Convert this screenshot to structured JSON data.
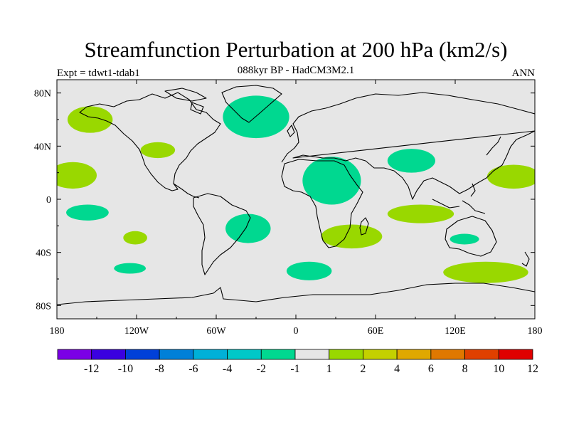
{
  "title": "Streamfunction Perturbation at 200 hPa (km2/s)",
  "left_label": "Expt = tdwt1-tdab1",
  "center_label": "088kyr BP - HadCM3M2.1",
  "right_label": "ANN",
  "colors": {
    "land_bg": "#e6e6e6",
    "pos1": "#99d800",
    "neg1": "#00d890",
    "coast": "#000000"
  },
  "chart_data": {
    "type": "heatmap",
    "projection": "cylindrical-equidistant",
    "lon_range": [
      -180,
      180
    ],
    "lat_range": [
      -90,
      90
    ],
    "x_ticks": [
      {
        "value": -180,
        "label": "180"
      },
      {
        "value": -120,
        "label": "120W"
      },
      {
        "value": -60,
        "label": "60W"
      },
      {
        "value": 0,
        "label": "0"
      },
      {
        "value": 60,
        "label": "60E"
      },
      {
        "value": 120,
        "label": "120E"
      },
      {
        "value": 180,
        "label": "180"
      }
    ],
    "y_ticks": [
      {
        "value": 80,
        "label": "80N"
      },
      {
        "value": 40,
        "label": "40N"
      },
      {
        "value": 0,
        "label": "0"
      },
      {
        "value": -40,
        "label": "40S"
      },
      {
        "value": -80,
        "label": "80S"
      }
    ],
    "colorbar": {
      "colors": [
        "#7b00e6",
        "#3a00e0",
        "#0040d8",
        "#0080d8",
        "#00b0d8",
        "#00c8c8",
        "#00d890",
        "#e6e6e6",
        "#99d800",
        "#c4d000",
        "#e0a800",
        "#e07800",
        "#e04000",
        "#e00000"
      ],
      "labels": [
        "-12",
        "-10",
        "-8",
        "-6",
        "-4",
        "-2",
        "-1",
        "1",
        "2",
        "4",
        "6",
        "8",
        "10",
        "12"
      ]
    },
    "anomaly_regions": [
      {
        "name": "north-pacific-pos",
        "sign": "positive",
        "lon": -155,
        "lat": 60,
        "rlon": 17,
        "rlat": 10
      },
      {
        "name": "north-america-pos",
        "sign": "positive",
        "lon": -104,
        "lat": 37,
        "rlon": 13,
        "rlat": 6
      },
      {
        "name": "east-pacific-pos",
        "sign": "positive",
        "lon": -168,
        "lat": 18,
        "rlon": 18,
        "rlat": 10
      },
      {
        "name": "subtropical-south-pacific-neg",
        "sign": "negative",
        "lon": -157,
        "lat": -10,
        "rlon": 16,
        "rlat": 6
      },
      {
        "name": "south-pacific-pos",
        "sign": "positive",
        "lon": -121,
        "lat": -29,
        "rlon": 9,
        "rlat": 5
      },
      {
        "name": "southern-ocean-neg",
        "sign": "negative",
        "lon": -125,
        "lat": -52,
        "rlon": 12,
        "rlat": 4
      },
      {
        "name": "north-atlantic-neg",
        "sign": "negative",
        "lon": -30,
        "lat": 62,
        "rlon": 25,
        "rlat": 16
      },
      {
        "name": "south-atlantic-neg",
        "sign": "negative",
        "lon": -36,
        "lat": -22,
        "rlon": 17,
        "rlat": 11
      },
      {
        "name": "south-atlantic-deep-neg",
        "sign": "negative",
        "lon": 10,
        "lat": -54,
        "rlon": 17,
        "rlat": 7
      },
      {
        "name": "north-africa-neg",
        "sign": "negative",
        "lon": 27,
        "lat": 14,
        "rlon": 22,
        "rlat": 18
      },
      {
        "name": "south-africa-pos",
        "sign": "positive",
        "lon": 42,
        "lat": -28,
        "rlon": 23,
        "rlat": 9
      },
      {
        "name": "central-asia-neg",
        "sign": "negative",
        "lon": 87,
        "lat": 29,
        "rlon": 18,
        "rlat": 9
      },
      {
        "name": "indian-ocean-pos",
        "sign": "positive",
        "lon": 94,
        "lat": -11,
        "rlon": 25,
        "rlat": 7
      },
      {
        "name": "australia-neg",
        "sign": "negative",
        "lon": 127,
        "lat": -30,
        "rlon": 11,
        "rlat": 4
      },
      {
        "name": "west-pacific-pos",
        "sign": "positive",
        "lon": 164,
        "lat": 17,
        "rlon": 20,
        "rlat": 9
      },
      {
        "name": "southern-indian-ocean-pos",
        "sign": "positive",
        "lon": 143,
        "lat": -55,
        "rlon": 32,
        "rlat": 8
      }
    ]
  }
}
